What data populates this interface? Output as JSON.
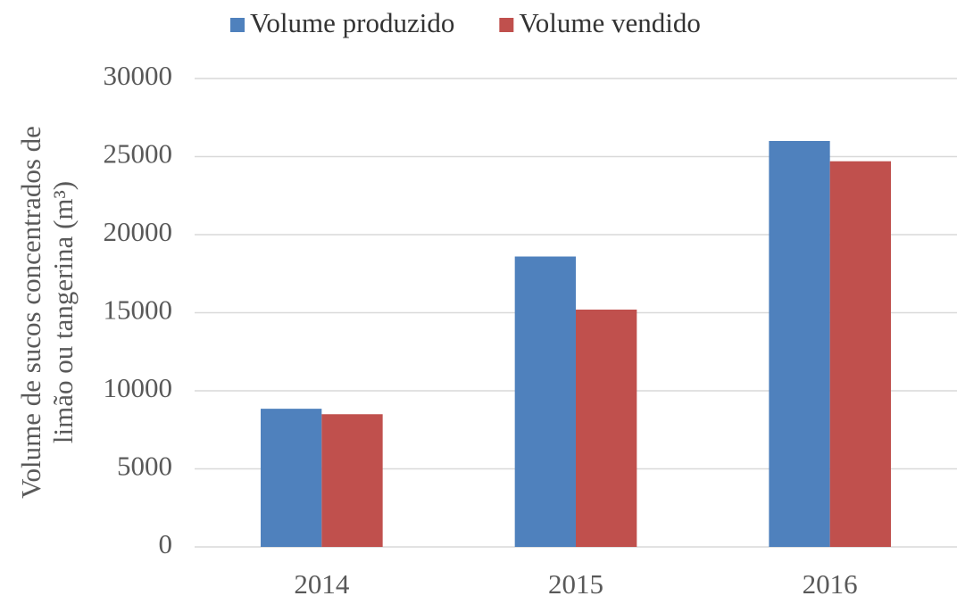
{
  "chart_data": {
    "type": "bar",
    "ylabel": [
      "Volume de sucos concentrados de",
      "limão ou tangerina  (m³)"
    ],
    "categories": [
      "2014",
      "2015",
      "2016"
    ],
    "series": [
      {
        "name": "Volume produzido",
        "color": "#4f81bd",
        "values": [
          8850,
          18600,
          26000
        ]
      },
      {
        "name": "Volume vendido",
        "color": "#c0504d",
        "values": [
          8500,
          15200,
          24700
        ]
      }
    ],
    "ylim": [
      0,
      30000
    ],
    "yticks": [
      0,
      5000,
      10000,
      15000,
      20000,
      25000,
      30000
    ],
    "grid": true,
    "legend": "top"
  }
}
